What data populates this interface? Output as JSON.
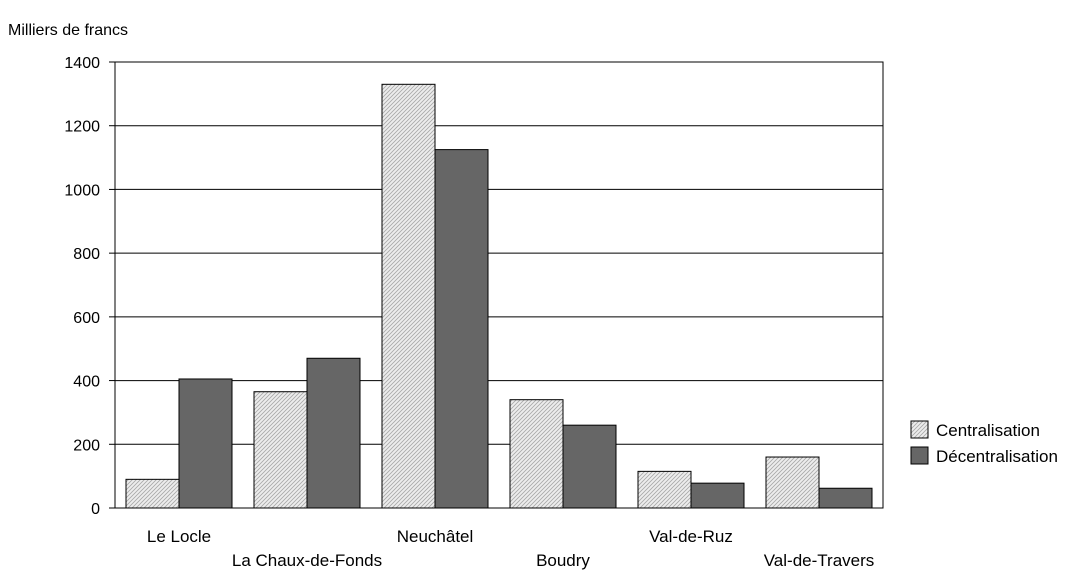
{
  "chart_data": {
    "type": "bar",
    "title": "",
    "ylabel": "Milliers de francs",
    "xlabel": "",
    "ylim": [
      0,
      1400
    ],
    "yticks": [
      0,
      200,
      400,
      600,
      800,
      1000,
      1200,
      1400
    ],
    "grid": true,
    "legend_position": "right",
    "categories": [
      "Le Locle",
      "La Chaux-de-Fonds",
      "Neuchâtel",
      "Boudry",
      "Val-de-Ruz",
      "Val-de-Travers"
    ],
    "series": [
      {
        "name": "Centralisation",
        "values": [
          90,
          365,
          1330,
          340,
          115,
          160
        ],
        "color": "#e6e6e6",
        "pattern": "diagonal-hatch"
      },
      {
        "name": "Décentralisation",
        "values": [
          405,
          470,
          1125,
          260,
          78,
          62
        ],
        "color": "#666666",
        "pattern": "solid"
      }
    ]
  }
}
